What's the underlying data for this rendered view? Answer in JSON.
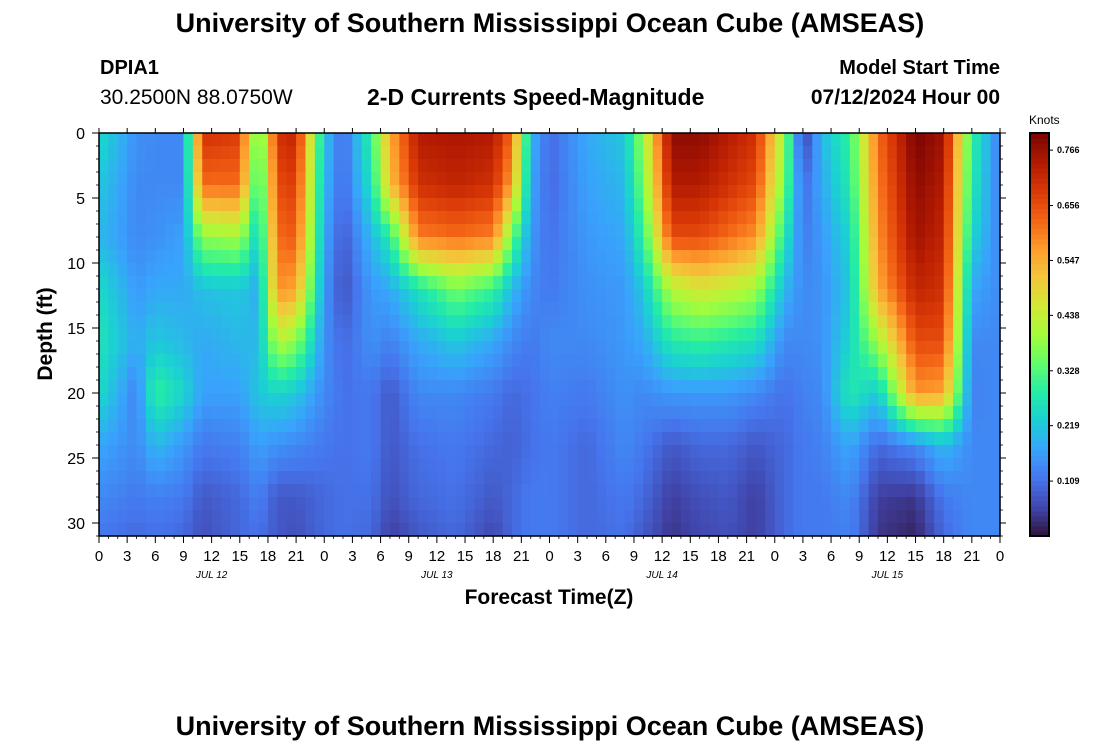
{
  "page": {
    "title": "University of Southern Mississippi Ocean Cube (AMSEAS)",
    "footer_title": "University of Southern Mississippi Ocean Cube (AMSEAS)",
    "station_id": "DPIA1",
    "location": "30.2500N  88.0750W",
    "model_start_label": "Model Start Time",
    "model_start_value": "07/12/2024 Hour 00"
  },
  "chart_data": {
    "type": "heatmap",
    "title": "2-D Currents Speed-Magnitude",
    "xlabel": "Forecast Time(Z)",
    "ylabel": "Depth (ft)",
    "x_unit": "hours from model start (07/12/2024 00Z)",
    "xlim": [
      0,
      96
    ],
    "ylim": [
      0,
      31
    ],
    "y_inverted": true,
    "x_ticks": [
      0,
      3,
      6,
      9,
      12,
      15,
      18,
      21,
      24,
      27,
      30,
      33,
      36,
      39,
      42,
      45,
      48,
      51,
      54,
      57,
      60,
      63,
      66,
      69,
      72,
      75,
      78,
      81,
      84,
      87,
      90,
      93,
      96
    ],
    "x_tick_labels": [
      "0",
      "3",
      "6",
      "9",
      "12",
      "15",
      "18",
      "21",
      "0",
      "3",
      "6",
      "9",
      "12",
      "15",
      "18",
      "21",
      "0",
      "3",
      "6",
      "9",
      "12",
      "15",
      "18",
      "21",
      "0",
      "3",
      "6",
      "9",
      "12",
      "15",
      "18",
      "21",
      "0"
    ],
    "date_labels": [
      {
        "x": 12,
        "text": "JUL 12"
      },
      {
        "x": 36,
        "text": "JUL 13"
      },
      {
        "x": 60,
        "text": "JUL 14"
      },
      {
        "x": 84,
        "text": "JUL 15"
      }
    ],
    "y_ticks": [
      0,
      5,
      10,
      15,
      20,
      25,
      30
    ],
    "colorbar": {
      "label": "Knots",
      "min": 0,
      "max": 0.8,
      "ticks": [
        0.109,
        0.219,
        0.328,
        0.438,
        0.547,
        0.656,
        0.766
      ],
      "tick_labels": [
        "0.109",
        "0.219",
        "0.328",
        "0.438",
        "0.547",
        "0.656",
        "0.766"
      ],
      "colors": [
        "#30123b",
        "#4145ab",
        "#4675ed",
        "#39a2fc",
        "#1bcfd4",
        "#24eca6",
        "#61fc6c",
        "#a4fc3b",
        "#d1e834",
        "#f3c63a",
        "#fe9b2d",
        "#f36315",
        "#d93806",
        "#b11901",
        "#7a0403"
      ]
    },
    "profiles": {
      "x": [
        0,
        4,
        6,
        9,
        11,
        15,
        17,
        19,
        21,
        24,
        26,
        29,
        31,
        34,
        38,
        42,
        44,
        46,
        48,
        52,
        56,
        58,
        61,
        64,
        67,
        70,
        73,
        75,
        77,
        80,
        83,
        87,
        90,
        93,
        96
      ],
      "depth": [
        0,
        4,
        8,
        12,
        16,
        20,
        24,
        28,
        31
      ],
      "speed": [
        [
          0.25,
          0.22,
          0.2,
          0.25,
          0.27,
          0.25,
          0.18,
          0.14,
          0.12
        ],
        [
          0.15,
          0.14,
          0.14,
          0.16,
          0.18,
          0.13,
          0.14,
          0.12,
          0.1
        ],
        [
          0.14,
          0.14,
          0.15,
          0.18,
          0.22,
          0.3,
          0.2,
          0.13,
          0.11
        ],
        [
          0.14,
          0.14,
          0.17,
          0.18,
          0.2,
          0.24,
          0.16,
          0.12,
          0.1
        ],
        [
          0.7,
          0.62,
          0.38,
          0.21,
          0.18,
          0.17,
          0.12,
          0.08,
          0.07
        ],
        [
          0.68,
          0.62,
          0.4,
          0.22,
          0.2,
          0.17,
          0.13,
          0.1,
          0.1
        ],
        [
          0.3,
          0.26,
          0.22,
          0.18,
          0.2,
          0.22,
          0.17,
          0.13,
          0.11
        ],
        [
          0.7,
          0.66,
          0.62,
          0.58,
          0.42,
          0.24,
          0.15,
          0.08,
          0.08
        ],
        [
          0.72,
          0.68,
          0.64,
          0.56,
          0.38,
          0.22,
          0.14,
          0.08,
          0.07
        ],
        [
          0.22,
          0.2,
          0.18,
          0.16,
          0.15,
          0.14,
          0.12,
          0.1,
          0.1
        ],
        [
          0.1,
          0.1,
          0.08,
          0.07,
          0.1,
          0.11,
          0.11,
          0.11,
          0.11
        ],
        [
          0.3,
          0.26,
          0.2,
          0.16,
          0.15,
          0.12,
          0.12,
          0.11,
          0.1
        ],
        [
          0.55,
          0.52,
          0.28,
          0.18,
          0.13,
          0.08,
          0.08,
          0.07,
          0.05
        ],
        [
          0.74,
          0.7,
          0.6,
          0.26,
          0.18,
          0.14,
          0.11,
          0.1,
          0.08
        ],
        [
          0.75,
          0.72,
          0.62,
          0.36,
          0.22,
          0.14,
          0.12,
          0.11,
          0.1
        ],
        [
          0.74,
          0.7,
          0.6,
          0.3,
          0.18,
          0.12,
          0.1,
          0.08,
          0.06
        ],
        [
          0.62,
          0.56,
          0.35,
          0.2,
          0.14,
          0.1,
          0.09,
          0.1,
          0.1
        ],
        [
          0.2,
          0.18,
          0.16,
          0.14,
          0.12,
          0.11,
          0.11,
          0.12,
          0.12
        ],
        [
          0.1,
          0.1,
          0.11,
          0.12,
          0.14,
          0.13,
          0.12,
          0.12,
          0.12
        ],
        [
          0.18,
          0.17,
          0.16,
          0.15,
          0.14,
          0.12,
          0.1,
          0.1,
          0.1
        ],
        [
          0.22,
          0.2,
          0.18,
          0.16,
          0.16,
          0.15,
          0.14,
          0.12,
          0.11
        ],
        [
          0.4,
          0.36,
          0.3,
          0.22,
          0.18,
          0.14,
          0.12,
          0.1,
          0.08
        ],
        [
          0.78,
          0.74,
          0.66,
          0.42,
          0.28,
          0.16,
          0.08,
          0.05,
          0.04
        ],
        [
          0.78,
          0.74,
          0.66,
          0.46,
          0.3,
          0.16,
          0.1,
          0.07,
          0.06
        ],
        [
          0.74,
          0.7,
          0.62,
          0.44,
          0.28,
          0.16,
          0.1,
          0.08,
          0.07
        ],
        [
          0.7,
          0.66,
          0.58,
          0.4,
          0.26,
          0.14,
          0.08,
          0.05,
          0.05
        ],
        [
          0.4,
          0.36,
          0.28,
          0.2,
          0.14,
          0.11,
          0.1,
          0.1,
          0.1
        ],
        [
          0.04,
          0.1,
          0.12,
          0.14,
          0.14,
          0.13,
          0.12,
          0.12,
          0.12
        ],
        [
          0.2,
          0.18,
          0.16,
          0.15,
          0.15,
          0.14,
          0.13,
          0.12,
          0.12
        ],
        [
          0.3,
          0.28,
          0.24,
          0.22,
          0.24,
          0.28,
          0.18,
          0.14,
          0.13
        ],
        [
          0.62,
          0.6,
          0.58,
          0.55,
          0.4,
          0.22,
          0.1,
          0.05,
          0.04
        ],
        [
          0.8,
          0.78,
          0.76,
          0.72,
          0.66,
          0.58,
          0.14,
          0.04,
          0.02
        ],
        [
          0.76,
          0.74,
          0.72,
          0.7,
          0.66,
          0.56,
          0.2,
          0.12,
          0.1
        ],
        [
          0.3,
          0.28,
          0.24,
          0.18,
          0.14,
          0.13,
          0.14,
          0.14,
          0.14
        ],
        [
          0.12,
          0.12,
          0.13,
          0.14,
          0.14,
          0.14,
          0.14,
          0.14,
          0.14
        ]
      ]
    }
  }
}
